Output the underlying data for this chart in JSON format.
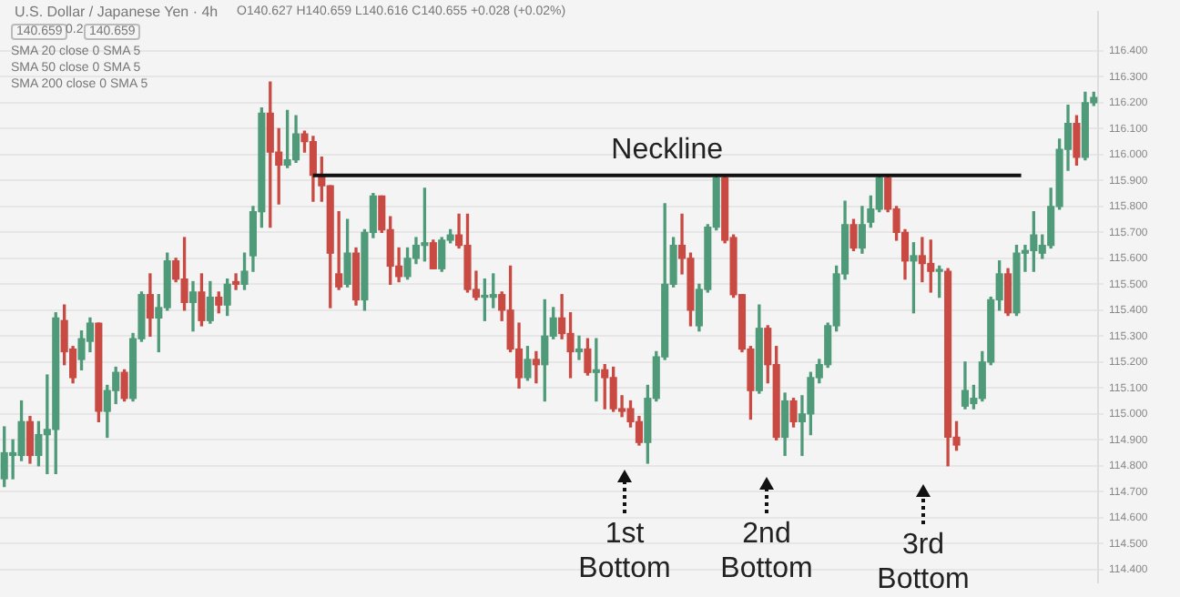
{
  "chart_data": {
    "type": "candlestick",
    "title": "U.S. Dollar / Japanese Yen · 4h",
    "subtitle": "O140.627 H140.659 L140.616 C140.655 +0.028 (+0.02%)",
    "annotations": [
      "140.659",
      "0.2",
      "140.659",
      "SMA 20 close 0 SMA 5",
      "SMA 50 close 0 SMA 5",
      "SMA 200 close 0 SMA 5",
      "1st Bottom",
      "2nd Bottom",
      "3rd Bottom"
    ],
    "categories": [
      null,
      null,
      null,
      null,
      null,
      null,
      null,
      null,
      null,
      null,
      null,
      null,
      null,
      null,
      null,
      null,
      null,
      null,
      null,
      null,
      null,
      null,
      null,
      null,
      null,
      null,
      null,
      null,
      null,
      null,
      null,
      null,
      null,
      null,
      null,
      null,
      null,
      null,
      null,
      null,
      null,
      null,
      null,
      null,
      null,
      null,
      null,
      null,
      null,
      null,
      null,
      null,
      null,
      null,
      null,
      null,
      null,
      null,
      null,
      null,
      null,
      null,
      null,
      null,
      null,
      null,
      null,
      null,
      null,
      null,
      null,
      null,
      null,
      null,
      null,
      null,
      null,
      null,
      null,
      null,
      null,
      null,
      null,
      null,
      null,
      null,
      null,
      null,
      null,
      null,
      null,
      null,
      null,
      null,
      null,
      null,
      null,
      null,
      null,
      null,
      null,
      null,
      null,
      null,
      null,
      null,
      null,
      null,
      null,
      null,
      null,
      null,
      null,
      null,
      null,
      null,
      null,
      null,
      null,
      null,
      null,
      null,
      null,
      null,
      null,
      null,
      null,
      null
    ],
    "ohlc": [
      [
        114.75,
        114.95,
        114.72,
        114.85
      ],
      [
        114.84,
        114.9,
        114.75,
        114.85
      ],
      [
        114.84,
        115.05,
        114.82,
        114.97
      ],
      [
        114.97,
        114.99,
        114.81,
        114.84
      ],
      [
        114.84,
        114.97,
        114.8,
        114.92
      ],
      [
        114.92,
        115.15,
        114.77,
        114.94
      ],
      [
        114.94,
        115.39,
        114.77,
        115.37
      ],
      [
        115.36,
        115.42,
        115.19,
        115.24
      ],
      [
        115.25,
        115.26,
        115.12,
        115.14
      ],
      [
        115.21,
        115.32,
        115.17,
        115.29
      ],
      [
        115.28,
        115.37,
        115.24,
        115.35
      ],
      [
        115.35,
        115.35,
        114.97,
        115.01
      ],
      [
        115.01,
        115.11,
        114.91,
        115.09
      ],
      [
        115.09,
        115.18,
        115.04,
        115.16
      ],
      [
        115.16,
        115.17,
        115.05,
        115.06
      ],
      [
        115.06,
        115.31,
        115.05,
        115.29
      ],
      [
        115.29,
        115.47,
        115.28,
        115.46
      ],
      [
        115.46,
        115.54,
        115.3,
        115.37
      ],
      [
        115.37,
        115.46,
        115.24,
        115.41
      ],
      [
        115.41,
        115.62,
        115.4,
        115.59
      ],
      [
        115.59,
        115.6,
        115.51,
        115.52
      ],
      [
        115.52,
        115.68,
        115.4,
        115.43
      ],
      [
        115.43,
        115.51,
        115.32,
        115.47
      ],
      [
        115.47,
        115.54,
        115.34,
        115.36
      ],
      [
        115.36,
        115.51,
        115.35,
        115.45
      ],
      [
        115.45,
        115.47,
        115.39,
        115.42
      ],
      [
        115.42,
        115.52,
        115.38,
        115.5
      ],
      [
        115.51,
        115.54,
        115.48,
        115.5
      ],
      [
        115.5,
        115.62,
        115.48,
        115.55
      ],
      [
        115.61,
        115.8,
        115.55,
        115.78
      ],
      [
        115.78,
        116.18,
        115.72,
        116.16
      ],
      [
        116.16,
        116.28,
        115.72,
        116.01
      ],
      [
        116.01,
        116.1,
        115.81,
        115.96
      ],
      [
        115.96,
        116.17,
        115.95,
        115.98
      ],
      [
        115.98,
        116.15,
        115.97,
        116.08
      ],
      [
        116.08,
        116.09,
        116.01,
        116.05
      ],
      [
        116.05,
        116.07,
        115.82,
        115.92
      ],
      [
        115.92,
        115.99,
        115.82,
        115.88
      ],
      [
        115.88,
        115.88,
        115.41,
        115.62
      ],
      [
        115.54,
        115.78,
        115.48,
        115.49
      ],
      [
        115.5,
        115.75,
        115.49,
        115.62
      ],
      [
        115.62,
        115.64,
        115.42,
        115.44
      ],
      [
        115.44,
        115.71,
        115.4,
        115.7
      ],
      [
        115.7,
        115.85,
        115.68,
        115.84
      ],
      [
        115.84,
        115.84,
        115.7,
        115.71
      ],
      [
        115.71,
        115.76,
        115.5,
        115.57
      ],
      [
        115.57,
        115.64,
        115.51,
        115.53
      ],
      [
        115.53,
        115.64,
        115.52,
        115.6
      ],
      [
        115.6,
        115.68,
        115.58,
        115.65
      ],
      [
        115.65,
        115.87,
        115.59,
        115.66
      ],
      [
        115.66,
        115.67,
        115.56,
        115.56
      ],
      [
        115.56,
        115.68,
        115.55,
        115.67
      ],
      [
        115.67,
        115.71,
        115.66,
        115.69
      ],
      [
        115.69,
        115.77,
        115.64,
        115.65
      ],
      [
        115.65,
        115.77,
        115.47,
        115.48
      ],
      [
        115.48,
        115.55,
        115.44,
        115.45
      ],
      [
        115.45,
        115.52,
        115.36,
        115.45
      ],
      [
        115.45,
        115.54,
        115.41,
        115.46
      ],
      [
        115.46,
        115.47,
        115.36,
        115.4
      ],
      [
        115.4,
        115.57,
        115.24,
        115.25
      ],
      [
        115.25,
        115.35,
        115.1,
        115.14
      ],
      [
        115.14,
        115.26,
        115.13,
        115.21
      ],
      [
        115.21,
        115.24,
        115.12,
        115.19
      ],
      [
        115.19,
        115.44,
        115.05,
        115.3
      ],
      [
        115.3,
        115.41,
        115.29,
        115.37
      ],
      [
        115.37,
        115.46,
        115.29,
        115.31
      ],
      [
        115.31,
        115.39,
        115.14,
        115.24
      ],
      [
        115.24,
        115.3,
        115.21,
        115.25
      ],
      [
        115.25,
        115.29,
        115.15,
        115.16
      ],
      [
        115.16,
        115.29,
        115.05,
        115.17
      ],
      [
        115.17,
        115.19,
        115.02,
        115.14
      ],
      [
        115.14,
        115.18,
        115.01,
        115.02
      ],
      [
        115.02,
        115.07,
        114.99,
        115.01
      ],
      [
        115.02,
        115.05,
        114.95,
        114.97
      ],
      [
        114.97,
        114.99,
        114.88,
        114.89
      ],
      [
        114.89,
        115.11,
        114.81,
        115.06
      ],
      [
        115.06,
        115.24,
        115.05,
        115.22
      ],
      [
        115.22,
        115.81,
        115.21,
        115.5
      ],
      [
        115.5,
        115.68,
        115.49,
        115.65
      ],
      [
        115.65,
        115.77,
        115.54,
        115.6
      ],
      [
        115.6,
        115.62,
        115.34,
        115.4
      ],
      [
        115.34,
        115.5,
        115.32,
        115.48
      ],
      [
        115.48,
        115.73,
        115.47,
        115.72
      ],
      [
        115.72,
        115.92,
        115.71,
        115.91
      ],
      [
        115.91,
        115.92,
        115.66,
        115.67
      ],
      [
        115.68,
        115.69,
        115.45,
        115.46
      ],
      [
        115.46,
        115.46,
        115.24,
        115.25
      ],
      [
        115.25,
        115.26,
        114.98,
        115.09
      ],
      [
        115.09,
        115.42,
        115.08,
        115.33
      ],
      [
        115.33,
        115.34,
        115.12,
        115.19
      ],
      [
        115.19,
        115.26,
        114.9,
        114.91
      ],
      [
        114.91,
        115.08,
        114.84,
        115.05
      ],
      [
        115.05,
        115.06,
        114.95,
        114.97
      ],
      [
        114.97,
        115.07,
        114.84,
        115.0
      ],
      [
        115.0,
        115.16,
        114.92,
        115.14
      ],
      [
        115.14,
        115.21,
        115.12,
        115.19
      ],
      [
        115.19,
        115.35,
        115.18,
        115.34
      ],
      [
        115.34,
        115.57,
        115.32,
        115.54
      ],
      [
        115.54,
        115.82,
        115.52,
        115.73
      ],
      [
        115.73,
        115.75,
        115.63,
        115.64
      ],
      [
        115.64,
        115.8,
        115.62,
        115.73
      ],
      [
        115.74,
        115.84,
        115.72,
        115.79
      ],
      [
        115.79,
        115.92,
        115.78,
        115.91
      ],
      [
        115.91,
        115.92,
        115.78,
        115.79
      ],
      [
        115.79,
        115.8,
        115.67,
        115.7
      ],
      [
        115.7,
        115.71,
        115.52,
        115.59
      ],
      [
        115.59,
        115.66,
        115.39,
        115.61
      ],
      [
        115.61,
        115.68,
        115.51,
        115.58
      ],
      [
        115.58,
        115.67,
        115.47,
        115.55
      ],
      [
        115.55,
        115.57,
        115.45,
        115.55
      ],
      [
        115.55,
        115.56,
        114.8,
        114.91
      ],
      [
        114.91,
        114.97,
        114.86,
        114.88
      ],
      [
        115.03,
        115.2,
        115.02,
        115.09
      ],
      [
        115.04,
        115.11,
        115.02,
        115.06
      ],
      [
        115.06,
        115.24,
        115.05,
        115.2
      ],
      [
        115.2,
        115.45,
        115.19,
        115.44
      ],
      [
        115.44,
        115.59,
        115.4,
        115.54
      ],
      [
        115.54,
        115.56,
        115.38,
        115.39
      ],
      [
        115.39,
        115.65,
        115.38,
        115.62
      ],
      [
        115.62,
        115.65,
        115.55,
        115.63
      ],
      [
        115.63,
        115.78,
        115.55,
        115.69
      ],
      [
        115.62,
        115.69,
        115.6,
        115.65
      ],
      [
        115.65,
        115.87,
        115.64,
        115.8
      ],
      [
        115.8,
        116.06,
        115.79,
        116.02
      ],
      [
        116.02,
        116.19,
        115.94,
        116.12
      ],
      [
        116.12,
        116.15,
        115.96,
        115.99
      ],
      [
        115.99,
        116.24,
        115.98,
        116.2
      ],
      [
        116.2,
        116.24,
        116.19,
        116.22
      ]
    ],
    "colors": [
      "#4f9a78",
      "#4f9a78",
      "#4f9a78",
      "#c94a42",
      "#4f9a78",
      "#4f9a78",
      "#4f9a78",
      "#c94a42",
      "#c94a42",
      "#4f9a78",
      "#4f9a78",
      "#c94a42",
      "#4f9a78",
      "#4f9a78",
      "#c94a42",
      "#4f9a78",
      "#4f9a78",
      "#c94a42",
      "#4f9a78",
      "#4f9a78",
      "#c94a42",
      "#c94a42",
      "#4f9a78",
      "#c94a42",
      "#4f9a78",
      "#c94a42",
      "#4f9a78",
      "#c94a42",
      "#4f9a78",
      "#4f9a78",
      "#4f9a78",
      "#c94a42",
      "#c94a42",
      "#4f9a78",
      "#4f9a78",
      "#c94a42",
      "#c94a42",
      "#c94a42",
      "#c94a42",
      "#c94a42",
      "#4f9a78",
      "#c94a42",
      "#4f9a78",
      "#4f9a78",
      "#c94a42",
      "#c94a42",
      "#c94a42",
      "#4f9a78",
      "#4f9a78",
      "#4f9a78",
      "#c94a42",
      "#4f9a78",
      "#4f9a78",
      "#c94a42",
      "#c94a42",
      "#c94a42",
      "#4f9a78",
      "#4f9a78",
      "#c94a42",
      "#c94a42",
      "#c94a42",
      "#4f9a78",
      "#c94a42",
      "#4f9a78",
      "#4f9a78",
      "#c94a42",
      "#c94a42",
      "#4f9a78",
      "#c94a42",
      "#4f9a78",
      "#c94a42",
      "#c94a42",
      "#c94a42",
      "#c94a42",
      "#c94a42",
      "#4f9a78",
      "#4f9a78",
      "#4f9a78",
      "#4f9a78",
      "#c94a42",
      "#c94a42",
      "#4f9a78",
      "#4f9a78",
      "#4f9a78",
      "#c94a42",
      "#c94a42",
      "#c94a42",
      "#c94a42",
      "#4f9a78",
      "#c94a42",
      "#c94a42",
      "#4f9a78",
      "#c94a42",
      "#4f9a78",
      "#4f9a78",
      "#4f9a78",
      "#4f9a78",
      "#4f9a78",
      "#4f9a78",
      "#c94a42",
      "#4f9a78",
      "#4f9a78",
      "#4f9a78",
      "#c94a42",
      "#c94a42",
      "#c94a42",
      "#4f9a78",
      "#c94a42",
      "#c94a42",
      "#4f9a78",
      "#c94a42",
      "#c94a42",
      "#4f9a78",
      "#4f9a78",
      "#4f9a78",
      "#4f9a78",
      "#4f9a78",
      "#c94a42",
      "#4f9a78",
      "#4f9a78",
      "#4f9a78",
      "#4f9a78",
      "#4f9a78",
      "#4f9a78",
      "#4f9a78",
      "#c94a42",
      "#4f9a78",
      "#4f9a78"
    ],
    "ylim": [
      114.35,
      116.55
    ],
    "yticks": [
      {
        "value": 114.4,
        "label": "114.400"
      },
      {
        "value": 114.5,
        "label": "114.500"
      },
      {
        "value": 114.6,
        "label": "114.600"
      },
      {
        "value": 114.7,
        "label": "114.700"
      },
      {
        "value": 114.8,
        "label": "114.800"
      },
      {
        "value": 114.9,
        "label": "114.900"
      },
      {
        "value": 115.0,
        "label": "115.000"
      },
      {
        "value": 115.1,
        "label": "115.100"
      },
      {
        "value": 115.2,
        "label": "115.200"
      },
      {
        "value": 115.3,
        "label": "115.300"
      },
      {
        "value": 115.4,
        "label": "115.400"
      },
      {
        "value": 115.5,
        "label": "115.500"
      },
      {
        "value": 115.6,
        "label": "115.600"
      },
      {
        "value": 115.7,
        "label": "115.700"
      },
      {
        "value": 115.8,
        "label": "115.800"
      },
      {
        "value": 115.9,
        "label": "115.900"
      },
      {
        "value": 116.0,
        "label": "116.000"
      },
      {
        "value": 116.1,
        "label": "116.100"
      },
      {
        "value": 116.2,
        "label": "116.200"
      },
      {
        "value": 116.3,
        "label": "116.300"
      },
      {
        "value": 116.4,
        "label": "116.400"
      }
    ],
    "ref_lines": [
      {
        "axis": "y",
        "value": 115.92,
        "label": "Neckline",
        "color": "#111111",
        "line_style": "solid"
      }
    ],
    "grid": "y",
    "tick_labels": "y"
  }
}
